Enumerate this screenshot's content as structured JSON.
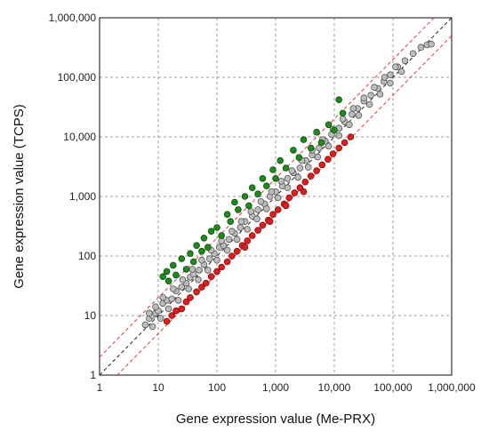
{
  "chart_data": {
    "type": "scatter",
    "xlabel": "Gene expression value (Me-PRX)",
    "ylabel": "Gene expression value (TCPS)",
    "scale": "log10",
    "xlim": [
      1,
      1000000
    ],
    "ylim": [
      1,
      1000000
    ],
    "grid": true,
    "x_tick_labels": [
      "1",
      "10",
      "100",
      "1,000",
      "10,000",
      "100,000",
      "1,000,000"
    ],
    "y_tick_labels": [
      "1",
      "10",
      "100",
      "1,000",
      "10,000",
      "100,000",
      "1,000,000"
    ],
    "reference_lines": [
      {
        "kind": "identity",
        "style": "dashed",
        "color": "#333333",
        "fold": 1
      },
      {
        "kind": "fold-change",
        "style": "dashed",
        "color": "#e03a3a",
        "fold": 2
      },
      {
        "kind": "fold-change",
        "style": "dashed",
        "color": "#e03a3a",
        "fold": 0.5
      }
    ],
    "series": [
      {
        "color": "#bdbdbd",
        "edge": "#555555",
        "points": [
          [
            6,
            7
          ],
          [
            7,
            9
          ],
          [
            8,
            10
          ],
          [
            9,
            11
          ],
          [
            10,
            12
          ],
          [
            12,
            16
          ],
          [
            14,
            18
          ],
          [
            17,
            19
          ],
          [
            20,
            26
          ],
          [
            25,
            30
          ],
          [
            30,
            35
          ],
          [
            35,
            44
          ],
          [
            40,
            50
          ],
          [
            50,
            58
          ],
          [
            60,
            72
          ],
          [
            75,
            90
          ],
          [
            90,
            110
          ],
          [
            110,
            140
          ],
          [
            130,
            150
          ],
          [
            160,
            190
          ],
          [
            200,
            240
          ],
          [
            250,
            300
          ],
          [
            300,
            380
          ],
          [
            400,
            470
          ],
          [
            500,
            600
          ],
          [
            650,
            750
          ],
          [
            800,
            1000
          ],
          [
            1000,
            1200
          ],
          [
            1300,
            1500
          ],
          [
            1600,
            2000
          ],
          [
            2000,
            2500
          ],
          [
            2600,
            3000
          ],
          [
            3300,
            4000
          ],
          [
            4200,
            5000
          ],
          [
            5500,
            6500
          ],
          [
            7000,
            8500
          ],
          [
            9000,
            11000
          ],
          [
            12000,
            14000
          ],
          [
            15000,
            18000
          ],
          [
            20000,
            24000
          ],
          [
            25000,
            30000
          ],
          [
            32000,
            40000
          ],
          [
            42000,
            50000
          ],
          [
            55000,
            65000
          ],
          [
            70000,
            85000
          ],
          [
            90000,
            110000
          ],
          [
            120000,
            150000
          ],
          [
            160000,
            190000
          ],
          [
            220000,
            250000
          ],
          [
            300000,
            320000
          ],
          [
            380000,
            350000
          ],
          [
            450000,
            360000
          ],
          [
            8,
            6.5
          ],
          [
            11,
            9
          ],
          [
            15,
            13
          ],
          [
            22,
            18
          ],
          [
            33,
            28
          ],
          [
            48,
            40
          ],
          [
            70,
            58
          ],
          [
            100,
            85
          ],
          [
            150,
            125
          ],
          [
            220,
            190
          ],
          [
            330,
            280
          ],
          [
            480,
            420
          ],
          [
            700,
            620
          ],
          [
            1100,
            950
          ],
          [
            1600,
            1400
          ],
          [
            2400,
            2100
          ],
          [
            3600,
            3100
          ],
          [
            5200,
            4600
          ],
          [
            8000,
            7000
          ],
          [
            12000,
            10500
          ],
          [
            18000,
            16000
          ],
          [
            26000,
            23000
          ],
          [
            40000,
            35000
          ],
          [
            60000,
            52000
          ],
          [
            90000,
            80000
          ],
          [
            140000,
            125000
          ],
          [
            7,
            11
          ],
          [
            9,
            14
          ],
          [
            12,
            20
          ],
          [
            18,
            28
          ],
          [
            26,
            40
          ],
          [
            38,
            60
          ],
          [
            55,
            85
          ],
          [
            80,
            125
          ],
          [
            120,
            180
          ],
          [
            180,
            260
          ],
          [
            260,
            380
          ],
          [
            380,
            560
          ],
          [
            560,
            820
          ],
          [
            850,
            1200
          ],
          [
            1250,
            1800
          ],
          [
            1900,
            2700
          ],
          [
            2800,
            4000
          ],
          [
            4200,
            6000
          ],
          [
            6300,
            9000
          ],
          [
            9500,
            13500
          ],
          [
            14000,
            20000
          ],
          [
            21000,
            30000
          ],
          [
            32000,
            45000
          ],
          [
            48000,
            68000
          ],
          [
            72000,
            100000
          ],
          [
            110000,
            150000
          ]
        ]
      },
      {
        "color": "#1e8a1e",
        "edge": "#0d4d0d",
        "points": [
          [
            12,
            45
          ],
          [
            14,
            55
          ],
          [
            15,
            38
          ],
          [
            18,
            70
          ],
          [
            20,
            48
          ],
          [
            25,
            90
          ],
          [
            30,
            60
          ],
          [
            35,
            110
          ],
          [
            40,
            80
          ],
          [
            45,
            150
          ],
          [
            55,
            120
          ],
          [
            60,
            200
          ],
          [
            70,
            140
          ],
          [
            80,
            260
          ],
          [
            100,
            300
          ],
          [
            120,
            220
          ],
          [
            150,
            500
          ],
          [
            170,
            380
          ],
          [
            200,
            800
          ],
          [
            230,
            600
          ],
          [
            300,
            1000
          ],
          [
            350,
            700
          ],
          [
            400,
            1400
          ],
          [
            500,
            1100
          ],
          [
            600,
            2000
          ],
          [
            700,
            1500
          ],
          [
            900,
            2800
          ],
          [
            1000,
            2000
          ],
          [
            1200,
            4000
          ],
          [
            1500,
            3000
          ],
          [
            2000,
            6000
          ],
          [
            2500,
            4500
          ],
          [
            3000,
            9000
          ],
          [
            4000,
            6500
          ],
          [
            5000,
            12000
          ],
          [
            6000,
            8000
          ],
          [
            8000,
            16000
          ],
          [
            10000,
            13000
          ],
          [
            12000,
            42000
          ],
          [
            14000,
            25000
          ]
        ]
      },
      {
        "color": "#e01e1e",
        "edge": "#7a0d0d",
        "points": [
          [
            14,
            8
          ],
          [
            17,
            10
          ],
          [
            20,
            12
          ],
          [
            25,
            13
          ],
          [
            30,
            17
          ],
          [
            35,
            20
          ],
          [
            45,
            25
          ],
          [
            55,
            30
          ],
          [
            65,
            35
          ],
          [
            80,
            45
          ],
          [
            100,
            55
          ],
          [
            120,
            65
          ],
          [
            150,
            80
          ],
          [
            180,
            100
          ],
          [
            220,
            120
          ],
          [
            270,
            150
          ],
          [
            330,
            180
          ],
          [
            400,
            220
          ],
          [
            500,
            270
          ],
          [
            600,
            330
          ],
          [
            750,
            400
          ],
          [
            900,
            500
          ],
          [
            1100,
            600
          ],
          [
            1400,
            750
          ],
          [
            1700,
            950
          ],
          [
            2100,
            1150
          ],
          [
            2600,
            1400
          ],
          [
            3200,
            1750
          ],
          [
            4000,
            2200
          ],
          [
            5000,
            2700
          ],
          [
            6200,
            3400
          ],
          [
            7800,
            4200
          ],
          [
            9500,
            5200
          ],
          [
            12000,
            6500
          ],
          [
            15000,
            8000
          ],
          [
            19000,
            10000
          ],
          [
            3000,
            1200
          ],
          [
            1500,
            700
          ],
          [
            800,
            380
          ],
          [
            300,
            140
          ]
        ]
      }
    ]
  }
}
